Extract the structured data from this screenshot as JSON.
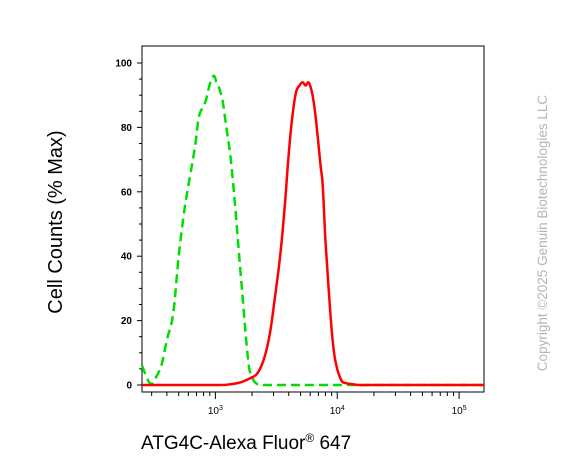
{
  "copyright": "Copyright ©2025 Genuin Biotechnologies LLC",
  "chart_data": {
    "type": "line",
    "title": "",
    "xlabel": "ATG4C-Alexa Fluor",
    "xlabel_sup": "®",
    "xlabel_suffix": " 647",
    "ylabel": "Cell Counts (% Max)",
    "xscale": "log",
    "xlim": [
      250,
      160000
    ],
    "ylim": [
      0,
      100
    ],
    "yticks": [
      0,
      20,
      40,
      60,
      80,
      100
    ],
    "ytick_labels": [
      "0",
      "20",
      "40",
      "60",
      "80",
      "100"
    ],
    "xticks": [
      1000,
      10000,
      100000
    ],
    "xtick_base": "10",
    "xtick_exponents": [
      "3",
      "4",
      "5"
    ],
    "grid": false,
    "legend": "none",
    "series": [
      {
        "color": "#00dd00",
        "dash": "dashed",
        "x": [
          250,
          290,
          320,
          360,
          400,
          450,
          500,
          560,
          620,
          680,
          730,
          780,
          830,
          880,
          930,
          980,
          1020,
          1080,
          1150,
          1230,
          1320,
          1420,
          1530,
          1650,
          1780,
          1900,
          2050,
          2200,
          2400,
          2700,
          3100,
          4000,
          6000,
          10000,
          20000,
          40000,
          80000,
          160000
        ],
        "y": [
          6,
          0.5,
          2,
          6,
          14,
          22,
          40,
          55,
          65,
          74,
          83,
          86,
          88,
          92,
          95,
          96,
          94,
          92,
          88,
          80,
          72,
          60,
          45,
          30,
          15,
          5,
          1.5,
          0.3,
          0,
          0,
          0,
          0,
          0,
          0,
          0,
          0,
          0,
          0
        ]
      },
      {
        "color": "#ff0000",
        "dash": "solid",
        "x": [
          250,
          1000,
          1300,
          1600,
          1900,
          2200,
          2500,
          2800,
          3100,
          3400,
          3700,
          4000,
          4300,
          4600,
          4900,
          5200,
          5500,
          5800,
          6100,
          6400,
          6700,
          7000,
          7300,
          7600,
          8000,
          8500,
          9000,
          9500,
          10000,
          10500,
          11000,
          12000,
          13000,
          15000,
          20000,
          40000,
          80000,
          160000
        ],
        "y": [
          0,
          0,
          0.2,
          0.8,
          2,
          3.5,
          8,
          16,
          28,
          40,
          55,
          72,
          84,
          91,
          93,
          94,
          93,
          94,
          92,
          88,
          82,
          75,
          68,
          62,
          45,
          30,
          17,
          9,
          5,
          2.5,
          1,
          0.5,
          0.3,
          0,
          0,
          0,
          0,
          0
        ]
      }
    ]
  }
}
